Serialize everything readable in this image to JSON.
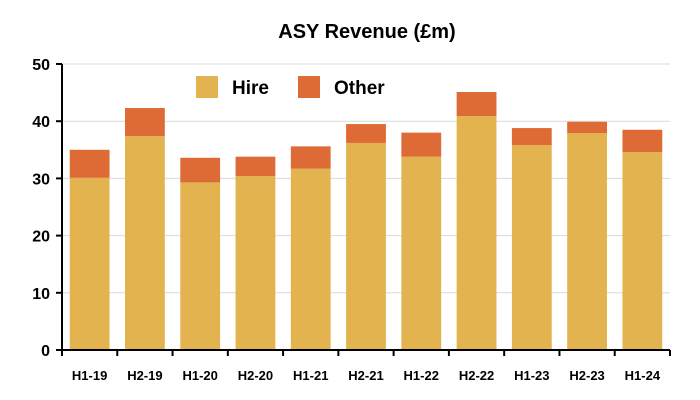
{
  "chart_data": {
    "type": "bar",
    "stacked": true,
    "title": "ASY Revenue (£m)",
    "xlabel": "",
    "ylabel": "",
    "ylim": [
      0,
      50
    ],
    "yticks": [
      0,
      10,
      20,
      30,
      40,
      50
    ],
    "ytick_labels": [
      "0",
      "10",
      "20",
      "30",
      "40",
      "50"
    ],
    "categories": [
      "H1-19",
      "H2-19",
      "H1-20",
      "H2-20",
      "H1-21",
      "H2-21",
      "H1-22",
      "H2-22",
      "H1-23",
      "H2-23",
      "H1-24"
    ],
    "series": [
      {
        "name": "Hire",
        "color": "#E3B34F",
        "values": [
          30.1,
          37.4,
          29.3,
          30.4,
          31.7,
          36.2,
          33.8,
          40.9,
          35.8,
          37.9,
          34.6
        ]
      },
      {
        "name": "Other",
        "color": "#DE6A35",
        "values": [
          4.9,
          4.9,
          4.3,
          3.4,
          3.9,
          3.3,
          4.2,
          4.2,
          3.0,
          2.0,
          3.9
        ]
      }
    ],
    "grid": true,
    "legend_position": "top-left"
  }
}
